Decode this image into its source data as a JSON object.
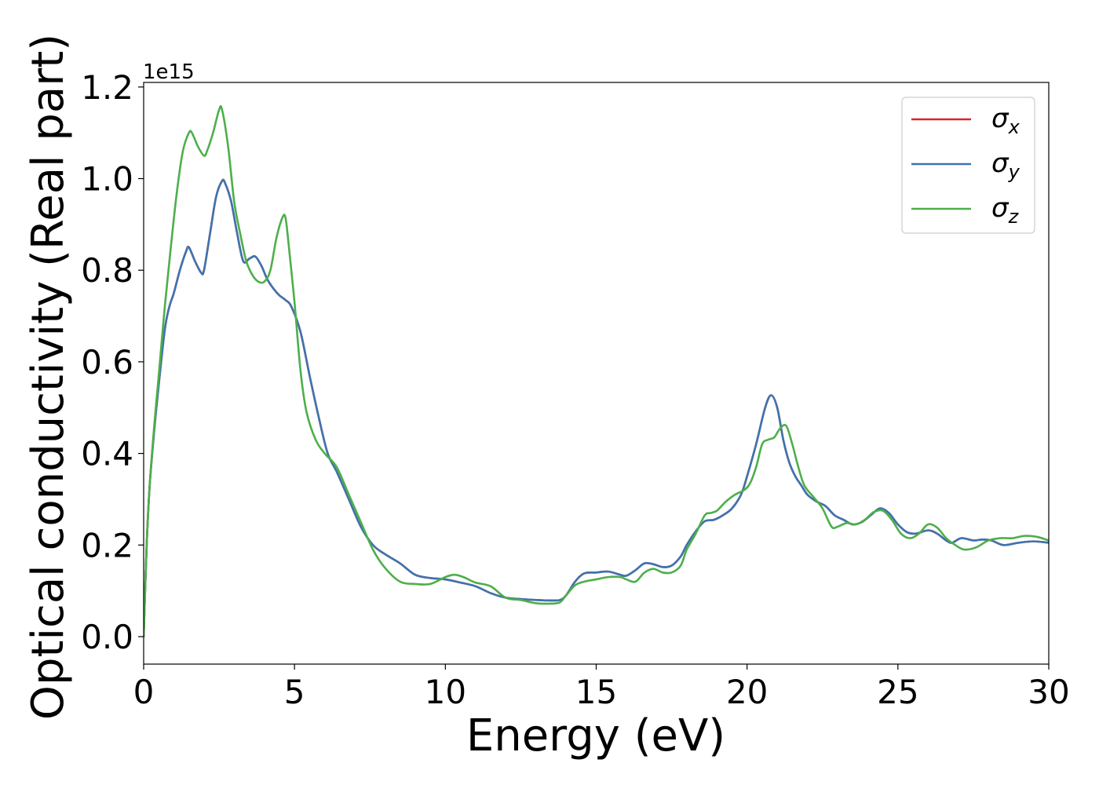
{
  "chart_data": {
    "type": "line",
    "xlabel": "Energy (eV)",
    "ylabel": "Optical conductivity (Real part)",
    "offset_label": "1e15",
    "y_scale_factor": 1000000000000000.0,
    "xlim": [
      0,
      30
    ],
    "ylim": [
      -0.06,
      1.21
    ],
    "xticks": [
      0,
      5,
      10,
      15,
      20,
      25,
      30
    ],
    "yticks": [
      0.0,
      0.2,
      0.4,
      0.6,
      0.8,
      1.0,
      1.2
    ],
    "xtick_labels": [
      "0",
      "5",
      "10",
      "15",
      "20",
      "25",
      "30"
    ],
    "ytick_labels": [
      "0.0",
      "0.2",
      "0.4",
      "0.6",
      "0.8",
      "1.0",
      "1.2"
    ],
    "grid": false,
    "legend_position": "top-right",
    "series": [
      {
        "name": "σx",
        "symbol": "σ",
        "subscript": "x",
        "color": "#d62728",
        "x": [
          0,
          0.1,
          0.2,
          0.35,
          0.5,
          0.7,
          0.85,
          1.0,
          1.2,
          1.4,
          1.5,
          1.7,
          1.9,
          2.0,
          2.2,
          2.4,
          2.6,
          2.7,
          2.9,
          3.1,
          3.3,
          3.5,
          3.7,
          3.9,
          4.1,
          4.3,
          4.5,
          4.7,
          4.9,
          5.2,
          5.5,
          5.8,
          6.1,
          6.4,
          6.8,
          7.2,
          7.6,
          8.0,
          8.5,
          9.0,
          9.5,
          10.0,
          10.5,
          11.0,
          11.5,
          12.0,
          12.5,
          13.0,
          13.5,
          13.8,
          14.0,
          14.3,
          14.6,
          15.0,
          15.4,
          15.8,
          16.0,
          16.3,
          16.6,
          16.9,
          17.2,
          17.5,
          17.8,
          18.0,
          18.3,
          18.6,
          18.9,
          19.2,
          19.5,
          19.8,
          20.0,
          20.3,
          20.6,
          20.8,
          21.0,
          21.2,
          21.4,
          21.6,
          21.8,
          22.0,
          22.3,
          22.6,
          22.9,
          23.2,
          23.5,
          23.8,
          24.1,
          24.4,
          24.7,
          25.0,
          25.3,
          25.6,
          26.0,
          26.3,
          26.6,
          26.8,
          27.1,
          27.5,
          27.8,
          28.1,
          28.5,
          29.0,
          29.5,
          30.0
        ],
        "y": [
          0.0,
          0.2,
          0.33,
          0.45,
          0.55,
          0.67,
          0.72,
          0.75,
          0.8,
          0.84,
          0.85,
          0.82,
          0.795,
          0.8,
          0.88,
          0.96,
          0.995,
          0.99,
          0.95,
          0.88,
          0.82,
          0.825,
          0.83,
          0.81,
          0.78,
          0.76,
          0.745,
          0.735,
          0.72,
          0.665,
          0.57,
          0.48,
          0.4,
          0.36,
          0.3,
          0.24,
          0.2,
          0.18,
          0.16,
          0.135,
          0.128,
          0.125,
          0.118,
          0.11,
          0.095,
          0.085,
          0.082,
          0.08,
          0.079,
          0.08,
          0.09,
          0.12,
          0.138,
          0.14,
          0.142,
          0.135,
          0.133,
          0.145,
          0.16,
          0.158,
          0.152,
          0.155,
          0.175,
          0.2,
          0.23,
          0.252,
          0.255,
          0.265,
          0.28,
          0.31,
          0.35,
          0.42,
          0.5,
          0.527,
          0.5,
          0.43,
          0.38,
          0.35,
          0.33,
          0.31,
          0.295,
          0.285,
          0.265,
          0.255,
          0.245,
          0.25,
          0.265,
          0.28,
          0.27,
          0.245,
          0.228,
          0.225,
          0.232,
          0.225,
          0.21,
          0.205,
          0.215,
          0.21,
          0.212,
          0.21,
          0.2,
          0.205,
          0.208,
          0.205
        ]
      },
      {
        "name": "σy",
        "symbol": "σ",
        "subscript": "y",
        "color": "#3d74b0",
        "x": [
          0,
          0.1,
          0.2,
          0.35,
          0.5,
          0.7,
          0.85,
          1.0,
          1.2,
          1.4,
          1.5,
          1.7,
          1.9,
          2.0,
          2.2,
          2.4,
          2.6,
          2.7,
          2.9,
          3.1,
          3.3,
          3.5,
          3.7,
          3.9,
          4.1,
          4.3,
          4.5,
          4.7,
          4.9,
          5.2,
          5.5,
          5.8,
          6.1,
          6.4,
          6.8,
          7.2,
          7.6,
          8.0,
          8.5,
          9.0,
          9.5,
          10.0,
          10.5,
          11.0,
          11.5,
          12.0,
          12.5,
          13.0,
          13.5,
          13.8,
          14.0,
          14.3,
          14.6,
          15.0,
          15.4,
          15.8,
          16.0,
          16.3,
          16.6,
          16.9,
          17.2,
          17.5,
          17.8,
          18.0,
          18.3,
          18.6,
          18.9,
          19.2,
          19.5,
          19.8,
          20.0,
          20.3,
          20.6,
          20.8,
          21.0,
          21.2,
          21.4,
          21.6,
          21.8,
          22.0,
          22.3,
          22.6,
          22.9,
          23.2,
          23.5,
          23.8,
          24.1,
          24.4,
          24.7,
          25.0,
          25.3,
          25.6,
          26.0,
          26.3,
          26.6,
          26.8,
          27.1,
          27.5,
          27.8,
          28.1,
          28.5,
          29.0,
          29.5,
          30.0
        ],
        "y": [
          0.0,
          0.2,
          0.33,
          0.45,
          0.55,
          0.67,
          0.72,
          0.75,
          0.8,
          0.84,
          0.85,
          0.82,
          0.795,
          0.8,
          0.88,
          0.96,
          0.995,
          0.99,
          0.95,
          0.88,
          0.82,
          0.825,
          0.83,
          0.81,
          0.78,
          0.76,
          0.745,
          0.735,
          0.72,
          0.665,
          0.57,
          0.48,
          0.4,
          0.36,
          0.3,
          0.24,
          0.2,
          0.18,
          0.16,
          0.135,
          0.128,
          0.125,
          0.118,
          0.11,
          0.095,
          0.085,
          0.082,
          0.08,
          0.079,
          0.08,
          0.09,
          0.12,
          0.138,
          0.14,
          0.142,
          0.135,
          0.133,
          0.145,
          0.16,
          0.158,
          0.152,
          0.155,
          0.175,
          0.2,
          0.23,
          0.252,
          0.255,
          0.265,
          0.28,
          0.31,
          0.35,
          0.42,
          0.5,
          0.527,
          0.5,
          0.43,
          0.38,
          0.35,
          0.33,
          0.31,
          0.295,
          0.285,
          0.265,
          0.255,
          0.245,
          0.25,
          0.265,
          0.28,
          0.27,
          0.245,
          0.228,
          0.225,
          0.232,
          0.225,
          0.21,
          0.205,
          0.215,
          0.21,
          0.212,
          0.21,
          0.2,
          0.205,
          0.208,
          0.205
        ]
      },
      {
        "name": "σz",
        "symbol": "σ",
        "subscript": "z",
        "color": "#4daf4a",
        "x": [
          0,
          0.1,
          0.2,
          0.35,
          0.5,
          0.7,
          0.9,
          1.1,
          1.3,
          1.5,
          1.6,
          1.8,
          2.0,
          2.1,
          2.3,
          2.5,
          2.6,
          2.8,
          3.0,
          3.2,
          3.4,
          3.6,
          3.8,
          4.0,
          4.2,
          4.4,
          4.6,
          4.7,
          4.8,
          5.0,
          5.2,
          5.4,
          5.7,
          6.0,
          6.4,
          6.8,
          7.2,
          7.6,
          8.0,
          8.5,
          9.0,
          9.5,
          10.0,
          10.3,
          10.6,
          11.0,
          11.5,
          12.0,
          12.5,
          13.0,
          13.5,
          13.8,
          14.0,
          14.3,
          14.6,
          15.0,
          15.4,
          15.8,
          16.0,
          16.3,
          16.6,
          16.9,
          17.2,
          17.5,
          17.8,
          18.0,
          18.3,
          18.6,
          18.8,
          19.0,
          19.3,
          19.6,
          19.9,
          20.1,
          20.3,
          20.5,
          20.7,
          20.9,
          21.1,
          21.3,
          21.5,
          21.7,
          21.9,
          22.2,
          22.5,
          22.8,
          23.0,
          23.3,
          23.6,
          23.9,
          24.2,
          24.5,
          24.8,
          25.1,
          25.4,
          25.7,
          26.0,
          26.3,
          26.6,
          26.9,
          27.2,
          27.6,
          28.0,
          28.4,
          28.8,
          29.2,
          29.6,
          30.0
        ],
        "y": [
          0.0,
          0.2,
          0.33,
          0.46,
          0.57,
          0.72,
          0.85,
          0.97,
          1.06,
          1.1,
          1.1,
          1.07,
          1.05,
          1.06,
          1.1,
          1.15,
          1.15,
          1.07,
          0.95,
          0.88,
          0.82,
          0.79,
          0.775,
          0.775,
          0.8,
          0.87,
          0.915,
          0.915,
          0.86,
          0.73,
          0.58,
          0.49,
          0.43,
          0.4,
          0.37,
          0.31,
          0.25,
          0.19,
          0.15,
          0.12,
          0.115,
          0.115,
          0.13,
          0.135,
          0.13,
          0.118,
          0.11,
          0.085,
          0.08,
          0.073,
          0.072,
          0.075,
          0.09,
          0.112,
          0.12,
          0.125,
          0.13,
          0.13,
          0.125,
          0.12,
          0.14,
          0.148,
          0.14,
          0.14,
          0.155,
          0.19,
          0.225,
          0.265,
          0.27,
          0.275,
          0.295,
          0.31,
          0.32,
          0.335,
          0.37,
          0.42,
          0.43,
          0.435,
          0.455,
          0.46,
          0.42,
          0.37,
          0.33,
          0.305,
          0.28,
          0.24,
          0.24,
          0.248,
          0.245,
          0.255,
          0.272,
          0.275,
          0.255,
          0.225,
          0.215,
          0.225,
          0.245,
          0.238,
          0.215,
          0.2,
          0.19,
          0.195,
          0.21,
          0.215,
          0.215,
          0.22,
          0.218,
          0.21
        ]
      }
    ]
  }
}
